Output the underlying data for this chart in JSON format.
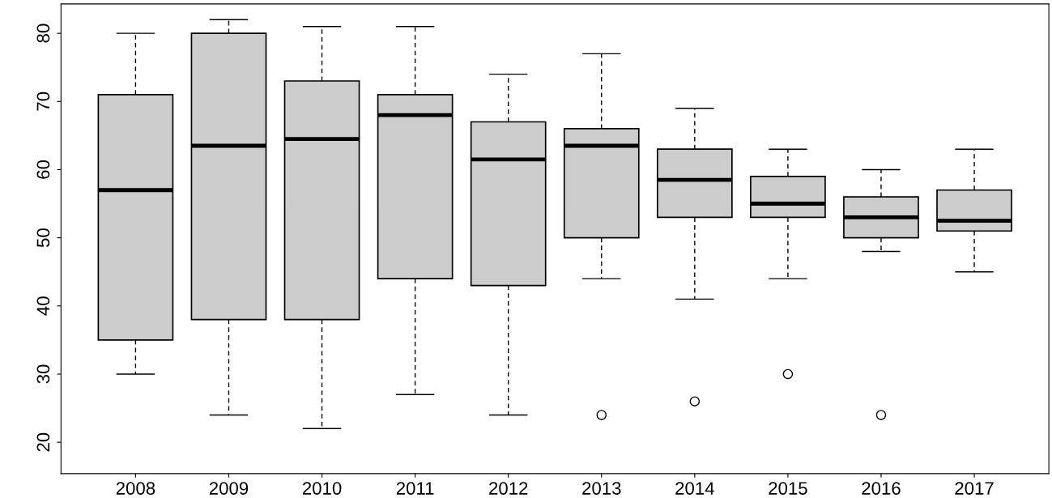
{
  "chart_data": {
    "type": "box",
    "categories": [
      "2008",
      "2009",
      "2010",
      "2011",
      "2012",
      "2013",
      "2014",
      "2015",
      "2016",
      "2017"
    ],
    "color": "#cccccc",
    "boxes": [
      {
        "low": 30,
        "q1": 35,
        "median": 57,
        "q3": 71,
        "high": 80
      },
      {
        "low": 24,
        "q1": 38,
        "median": 63.5,
        "q3": 80,
        "high": 82
      },
      {
        "low": 22,
        "q1": 38,
        "median": 64.5,
        "q3": 73,
        "high": 81
      },
      {
        "low": 27,
        "q1": 44,
        "median": 68,
        "q3": 71,
        "high": 81
      },
      {
        "low": 24,
        "q1": 43,
        "median": 61.5,
        "q3": 67,
        "high": 74
      },
      {
        "low": 44,
        "q1": 50,
        "median": 63.5,
        "q3": 66,
        "high": 77,
        "outliers": [
          24
        ]
      },
      {
        "low": 41,
        "q1": 53,
        "median": 58.5,
        "q3": 63,
        "high": 69,
        "outliers": [
          26
        ]
      },
      {
        "low": 44,
        "q1": 53,
        "median": 55,
        "q3": 59,
        "high": 63,
        "outliers": [
          30
        ]
      },
      {
        "low": 48,
        "q1": 50,
        "median": 53,
        "q3": 56,
        "high": 60,
        "outliers": [
          24
        ]
      },
      {
        "low": 45,
        "q1": 51,
        "median": 52.5,
        "q3": 57,
        "high": 63
      }
    ],
    "ylim": [
      15.4,
      84.3
    ],
    "yticks": [
      20,
      30,
      40,
      50,
      60,
      70,
      80
    ],
    "grid": false
  }
}
